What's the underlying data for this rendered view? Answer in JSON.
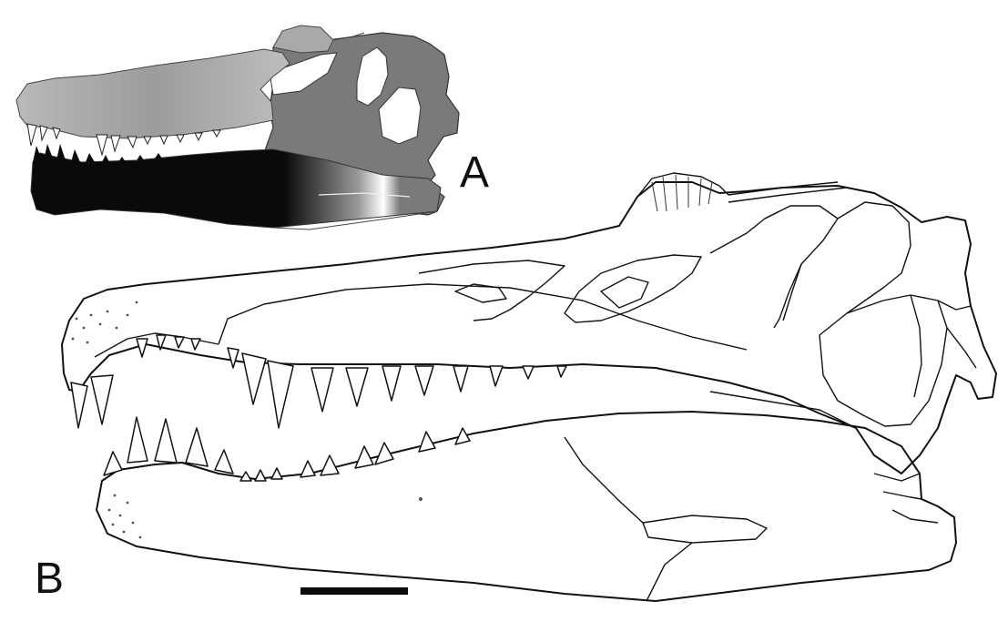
{
  "figure": {
    "panels": [
      {
        "id": "A",
        "label": "A"
      },
      {
        "id": "B",
        "label": "B"
      }
    ],
    "colors": {
      "outline": "#111111",
      "preserved_bone": "#a9a9a9",
      "reconstructed_gray": "#7a7a7a",
      "lower_jaw_black": "#0a0a0a",
      "background": "#ffffff"
    },
    "scale_bar_present": true
  }
}
